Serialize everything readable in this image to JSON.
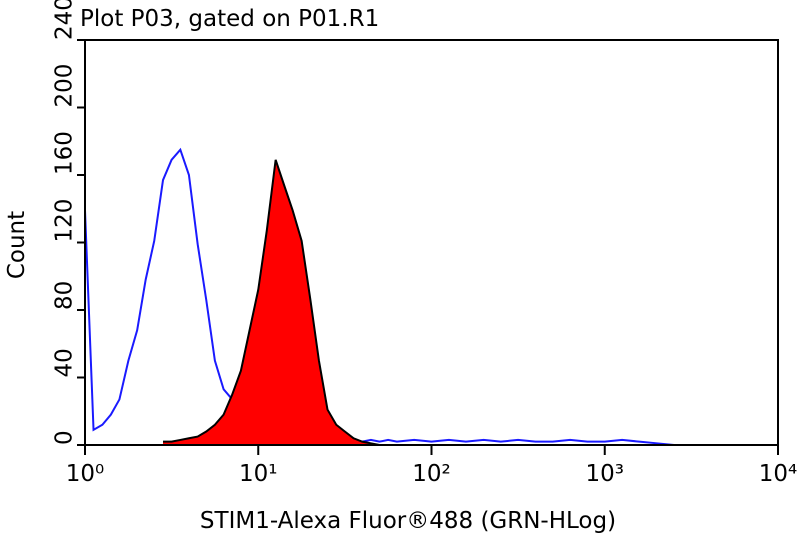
{
  "chart_data": {
    "type": "histogram-overlay",
    "title": "Plot P03, gated on P01.R1",
    "x_label": "STIM1-Alexa Fluor®488 (GRN-HLog)",
    "y_label": "Count",
    "xscale": "log",
    "xlim": [
      1,
      10000
    ],
    "ylim": [
      0,
      240
    ],
    "xticks": [
      {
        "value": 1,
        "label": "10⁰"
      },
      {
        "value": 10,
        "label": "10¹"
      },
      {
        "value": 100,
        "label": "10²"
      },
      {
        "value": 1000,
        "label": "10³"
      },
      {
        "value": 10000,
        "label": "10⁴"
      }
    ],
    "yticks": [
      0,
      40,
      80,
      120,
      160,
      200,
      240
    ],
    "x": [
      1,
      1.12,
      1.26,
      1.41,
      1.58,
      1.78,
      2,
      2.24,
      2.51,
      2.82,
      3.16,
      3.55,
      3.98,
      4.47,
      5.01,
      5.62,
      6.31,
      7.08,
      7.94,
      8.91,
      10,
      11.2,
      12.6,
      14.1,
      15.8,
      17.8,
      20,
      22.4,
      25.1,
      28.2,
      31.6,
      35.5,
      39.8,
      44.7,
      50.1,
      56.2,
      63.1,
      79.4,
      100,
      126,
      158,
      200,
      251,
      316,
      398,
      501,
      631,
      794,
      1000,
      1260,
      1580,
      2000,
      2510
    ],
    "series": [
      {
        "color": "#1a1aff",
        "filled": false,
        "values": [
          139,
          9,
          12,
          18,
          27,
          50,
          68,
          98,
          121,
          157,
          169,
          175,
          160,
          119,
          86,
          50,
          33,
          27,
          30,
          21,
          12,
          8,
          5,
          3,
          3,
          2,
          3,
          2,
          3,
          3,
          2,
          3,
          2,
          3,
          2,
          3,
          2,
          3,
          2,
          3,
          2,
          3,
          2,
          3,
          2,
          2,
          3,
          2,
          2,
          3,
          2,
          1,
          0
        ]
      },
      {
        "color": "#ff0000",
        "filled": true,
        "values": [
          null,
          null,
          null,
          null,
          null,
          null,
          null,
          null,
          null,
          2,
          2,
          3,
          4,
          5,
          8,
          12,
          18,
          30,
          44,
          68,
          92,
          127,
          169,
          154,
          139,
          121,
          86,
          50,
          21,
          12,
          8,
          4,
          2,
          1,
          0,
          null,
          null,
          null,
          null,
          null,
          null,
          null,
          null,
          null,
          null,
          null,
          null,
          null,
          null,
          null,
          null,
          null,
          null
        ]
      }
    ]
  }
}
